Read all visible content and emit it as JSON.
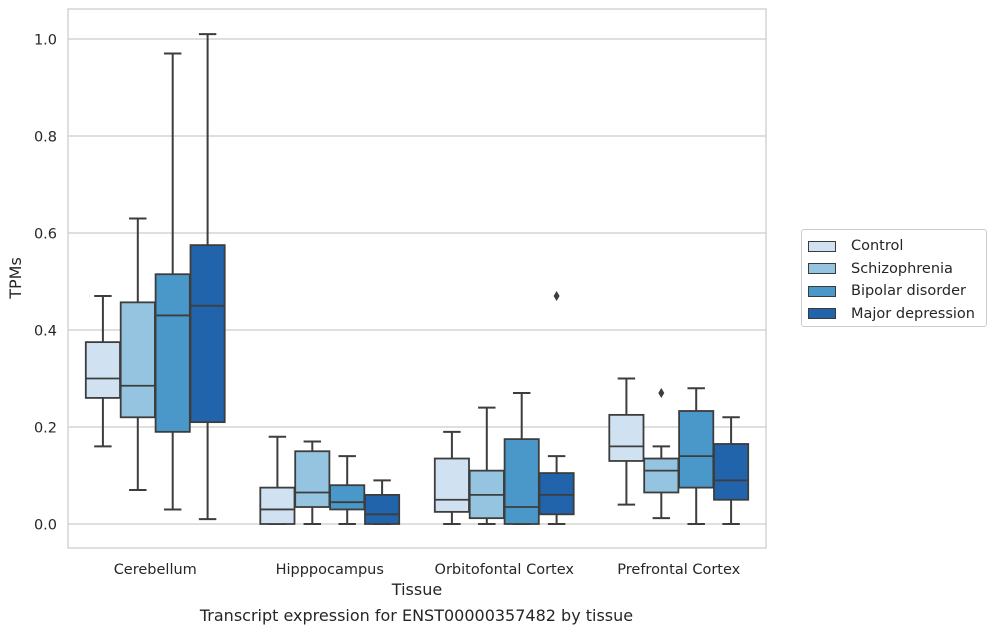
{
  "chart_data": {
    "type": "box",
    "xlabel": "Tissue",
    "ylabel": "TPMs",
    "ylim": [
      -0.05,
      1.06
    ],
    "yticks": [
      "0.0",
      "0.2",
      "0.4",
      "0.6",
      "0.8",
      "1.0"
    ],
    "grid": "horizontal",
    "legend_position": "right",
    "categories": [
      "Cerebellum",
      "Hipppocampus",
      "Orbitofontal Cortex",
      "Prefrontal Cortex"
    ],
    "series": [
      {
        "name": "Control",
        "color": "#d0e1f2",
        "boxes": [
          {
            "whislo": 0.16,
            "q1": 0.26,
            "med": 0.3,
            "q3": 0.375,
            "whishi": 0.47,
            "fliers": []
          },
          {
            "whislo": 0.0,
            "q1": 0.0,
            "med": 0.03,
            "q3": 0.075,
            "whishi": 0.18,
            "fliers": []
          },
          {
            "whislo": 0.0,
            "q1": 0.025,
            "med": 0.05,
            "q3": 0.135,
            "whishi": 0.19,
            "fliers": []
          },
          {
            "whislo": 0.04,
            "q1": 0.13,
            "med": 0.16,
            "q3": 0.225,
            "whishi": 0.3,
            "fliers": []
          }
        ]
      },
      {
        "name": "Schizophrenia",
        "color": "#94c4df",
        "boxes": [
          {
            "whislo": 0.07,
            "q1": 0.22,
            "med": 0.285,
            "q3": 0.457,
            "whishi": 0.63,
            "fliers": []
          },
          {
            "whislo": 0.0,
            "q1": 0.035,
            "med": 0.065,
            "q3": 0.15,
            "whishi": 0.17,
            "fliers": []
          },
          {
            "whislo": 0.0,
            "q1": 0.012,
            "med": 0.06,
            "q3": 0.11,
            "whishi": 0.24,
            "fliers": []
          },
          {
            "whislo": 0.012,
            "q1": 0.065,
            "med": 0.11,
            "q3": 0.135,
            "whishi": 0.16,
            "fliers": [
              0.27
            ]
          }
        ]
      },
      {
        "name": "Bipolar disorder",
        "color": "#4a98c9",
        "boxes": [
          {
            "whislo": 0.03,
            "q1": 0.19,
            "med": 0.43,
            "q3": 0.515,
            "whishi": 0.97,
            "fliers": []
          },
          {
            "whislo": 0.0,
            "q1": 0.03,
            "med": 0.045,
            "q3": 0.08,
            "whishi": 0.14,
            "fliers": []
          },
          {
            "whislo": 0.0,
            "q1": 0.0,
            "med": 0.035,
            "q3": 0.175,
            "whishi": 0.27,
            "fliers": []
          },
          {
            "whislo": 0.0,
            "q1": 0.075,
            "med": 0.14,
            "q3": 0.233,
            "whishi": 0.28,
            "fliers": []
          }
        ]
      },
      {
        "name": "Major depression",
        "color": "#2164ab",
        "boxes": [
          {
            "whislo": 0.01,
            "q1": 0.21,
            "med": 0.45,
            "q3": 0.575,
            "whishi": 1.01,
            "fliers": []
          },
          {
            "whislo": 0.0,
            "q1": 0.0,
            "med": 0.02,
            "q3": 0.06,
            "whishi": 0.09,
            "fliers": []
          },
          {
            "whislo": 0.0,
            "q1": 0.02,
            "med": 0.06,
            "q3": 0.105,
            "whishi": 0.14,
            "fliers": [
              0.47
            ]
          },
          {
            "whislo": 0.0,
            "q1": 0.05,
            "med": 0.09,
            "q3": 0.165,
            "whishi": 0.22,
            "fliers": []
          }
        ]
      }
    ]
  },
  "caption": "Transcript expression for ENST00000357482 by tissue"
}
